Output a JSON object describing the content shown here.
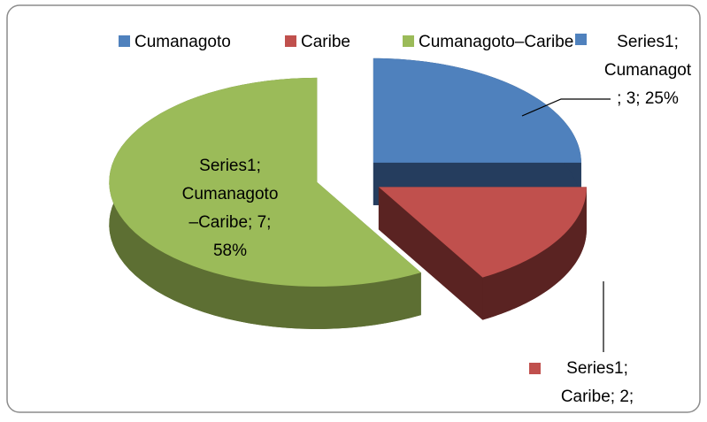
{
  "chart_data": {
    "type": "pie3d",
    "categories": [
      "Cumanagoto",
      "Caribe",
      "Cumanagoto–Caribe"
    ],
    "values": [
      3,
      2,
      7
    ],
    "colors": [
      "#4f81bd",
      "#c0504d",
      "#9bbb59"
    ],
    "side_colors": [
      "#253d5e",
      "#5a2322",
      "#5d6f33"
    ],
    "data_labels": [
      [
        "Series1;",
        "Cumanagot",
        "; 3; 25%"
      ],
      [
        "Series1;",
        "Caribe; 2;"
      ],
      [
        "Series1;",
        "Cumanagoto",
        "–Caribe; 7;",
        "58%"
      ]
    ],
    "legend": "top"
  }
}
